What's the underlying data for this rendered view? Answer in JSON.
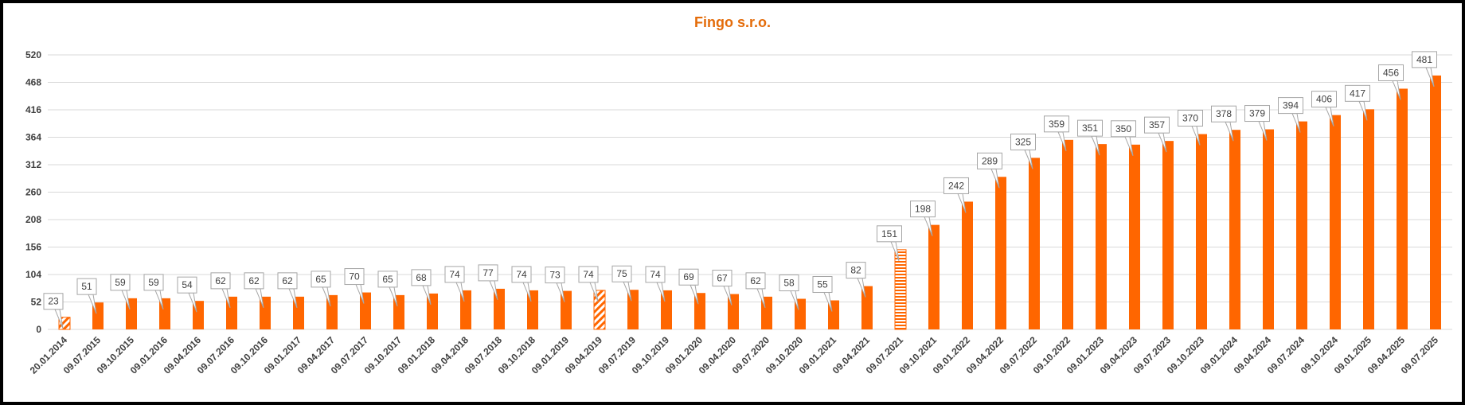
{
  "chart_data": {
    "type": "bar",
    "title": "Fingo s.r.o.",
    "xlabel": "",
    "ylabel": "",
    "ylim": [
      0,
      520
    ],
    "yticks": [
      0,
      52,
      104,
      156,
      208,
      260,
      312,
      364,
      416,
      468,
      520
    ],
    "grid": true,
    "legend": "none",
    "colors": {
      "bar": "#FF6600",
      "title": "#E46C0A",
      "grid": "#D9D9D9",
      "label_border": "#A6A6A6"
    },
    "categories": [
      "20.01.2014",
      "09.07.2015",
      "09.10.2015",
      "09.01.2016",
      "09.04.2016",
      "09.07.2016",
      "09.10.2016",
      "09.01.2017",
      "09.04.2017",
      "09.07.2017",
      "09.10.2017",
      "09.01.2018",
      "09.04.2018",
      "09.07.2018",
      "09.10.2018",
      "09.01.2019",
      "09.04.2019",
      "09.07.2019",
      "09.10.2019",
      "09.01.2020",
      "09.04.2020",
      "09.07.2020",
      "09.10.2020",
      "09.01.2021",
      "09.04.2021",
      "09.07.2021",
      "09.10.2021",
      "09.01.2022",
      "09.04.2022",
      "09.07.2022",
      "09.10.2022",
      "09.01.2023",
      "09.04.2023",
      "09.07.2023",
      "09.10.2023",
      "09.01.2024",
      "09.04.2024",
      "09.07.2024",
      "09.10.2024",
      "09.01.2025",
      "09.04.2025",
      "09.07.2025"
    ],
    "values": [
      23,
      51,
      59,
      59,
      54,
      62,
      62,
      62,
      65,
      70,
      65,
      68,
      74,
      77,
      74,
      73,
      74,
      75,
      74,
      69,
      67,
      62,
      58,
      55,
      82,
      151,
      198,
      242,
      289,
      325,
      359,
      351,
      350,
      357,
      370,
      378,
      379,
      394,
      406,
      417,
      456,
      481
    ],
    "bar_patterns": [
      "diagonal",
      "solid",
      "solid",
      "solid",
      "solid",
      "solid",
      "solid",
      "solid",
      "solid",
      "solid",
      "solid",
      "solid",
      "solid",
      "solid",
      "solid",
      "solid",
      "diagonal",
      "solid",
      "solid",
      "solid",
      "solid",
      "solid",
      "solid",
      "solid",
      "solid",
      "horizontal",
      "solid",
      "solid",
      "solid",
      "solid",
      "solid",
      "solid",
      "solid",
      "solid",
      "solid",
      "solid",
      "solid",
      "solid",
      "solid",
      "solid",
      "solid",
      "solid"
    ]
  }
}
